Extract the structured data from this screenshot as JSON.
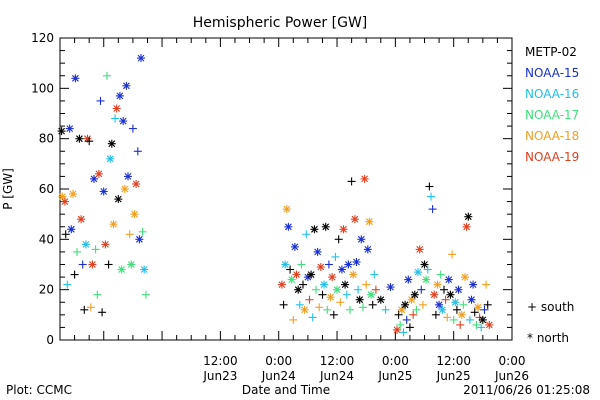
{
  "chart_data": {
    "type": "scatter",
    "title": "Hemispheric Power [GW]",
    "ylabel": "P [GW]",
    "xlabel": "Date and Time",
    "ylim": [
      0,
      120
    ],
    "y_ticks": [
      0,
      20,
      40,
      60,
      80,
      100,
      120
    ],
    "xlim": [
      "2011-06-22T03:00",
      "2011-06-26T00:00"
    ],
    "x_ticks": [
      {
        "at": "2011-06-23T12:00",
        "time": "12:00",
        "date": "Jun23"
      },
      {
        "at": "2011-06-24T00:00",
        "time": "0:00",
        "date": "Jun24"
      },
      {
        "at": "2011-06-24T12:00",
        "time": "12:00",
        "date": "Jun24"
      },
      {
        "at": "2011-06-25T00:00",
        "time": "0:00",
        "date": "Jun25"
      },
      {
        "at": "2011-06-25T12:00",
        "time": "12:00",
        "date": "Jun25"
      },
      {
        "at": "2011-06-26T00:00",
        "time": "0:00",
        "date": "Jun26"
      }
    ],
    "legend_placement": "right",
    "series": [
      {
        "name": "METP-02",
        "color": "#000000"
      },
      {
        "name": "NOAA-15",
        "color": "#1a2fd0"
      },
      {
        "name": "NOAA-16",
        "color": "#22c0e8"
      },
      {
        "name": "NOAA-17",
        "color": "#3ee07a"
      },
      {
        "name": "NOAA-18",
        "color": "#f0a020"
      },
      {
        "name": "NOAA-19",
        "color": "#e04020"
      }
    ],
    "marker_key": [
      {
        "symbol": "plus",
        "label": "+ south"
      },
      {
        "symbol": "star",
        "label": "* north"
      }
    ],
    "points": [
      [
        "2011-06-22T03:20",
        83,
        "METP-02",
        "star"
      ],
      [
        "2011-06-22T03:30",
        57,
        "NOAA-18",
        "star"
      ],
      [
        "2011-06-22T04:00",
        55,
        "NOAA-19",
        "star"
      ],
      [
        "2011-06-22T04:10",
        42,
        "METP-02",
        "plus"
      ],
      [
        "2011-06-22T04:30",
        22,
        "NOAA-16",
        "plus"
      ],
      [
        "2011-06-22T05:00",
        84,
        "NOAA-15",
        "star"
      ],
      [
        "2011-06-22T05:20",
        44,
        "NOAA-15",
        "star"
      ],
      [
        "2011-06-22T05:40",
        58,
        "NOAA-18",
        "star"
      ],
      [
        "2011-06-22T06:00",
        26,
        "METP-02",
        "plus"
      ],
      [
        "2011-06-22T06:10",
        104,
        "NOAA-15",
        "star"
      ],
      [
        "2011-06-22T06:30",
        35,
        "NOAA-17",
        "plus"
      ],
      [
        "2011-06-22T07:00",
        80,
        "METP-02",
        "star"
      ],
      [
        "2011-06-22T07:20",
        48,
        "NOAA-19",
        "star"
      ],
      [
        "2011-06-22T07:40",
        30,
        "NOAA-15",
        "plus"
      ],
      [
        "2011-06-22T08:00",
        12,
        "METP-02",
        "plus"
      ],
      [
        "2011-06-22T08:20",
        38,
        "NOAA-16",
        "star"
      ],
      [
        "2011-06-22T08:40",
        80,
        "NOAA-19",
        "star"
      ],
      [
        "2011-06-22T09:00",
        79,
        "METP-02",
        "plus"
      ],
      [
        "2011-06-22T09:20",
        13,
        "NOAA-18",
        "plus"
      ],
      [
        "2011-06-22T09:40",
        30,
        "NOAA-19",
        "star"
      ],
      [
        "2011-06-22T10:00",
        64,
        "NOAA-15",
        "star"
      ],
      [
        "2011-06-22T10:20",
        36,
        "NOAA-17",
        "plus"
      ],
      [
        "2011-06-22T10:40",
        18,
        "NOAA-17",
        "plus"
      ],
      [
        "2011-06-22T11:00",
        66,
        "NOAA-19",
        "star"
      ],
      [
        "2011-06-22T11:20",
        95,
        "NOAA-15",
        "plus"
      ],
      [
        "2011-06-22T11:40",
        11,
        "METP-02",
        "plus"
      ],
      [
        "2011-06-22T12:00",
        59,
        "NOAA-15",
        "star"
      ],
      [
        "2011-06-22T12:20",
        38,
        "NOAA-19",
        "star"
      ],
      [
        "2011-06-22T12:40",
        105,
        "NOAA-17",
        "plus"
      ],
      [
        "2011-06-22T13:00",
        30,
        "METP-02",
        "plus"
      ],
      [
        "2011-06-22T13:20",
        72,
        "NOAA-16",
        "star"
      ],
      [
        "2011-06-22T13:40",
        78,
        "METP-02",
        "star"
      ],
      [
        "2011-06-22T14:00",
        46,
        "NOAA-18",
        "star"
      ],
      [
        "2011-06-22T14:20",
        88,
        "NOAA-16",
        "plus"
      ],
      [
        "2011-06-22T14:40",
        92,
        "NOAA-19",
        "star"
      ],
      [
        "2011-06-22T15:00",
        56,
        "METP-02",
        "star"
      ],
      [
        "2011-06-22T15:20",
        97,
        "NOAA-15",
        "star"
      ],
      [
        "2011-06-22T15:40",
        28,
        "NOAA-17",
        "star"
      ],
      [
        "2011-06-22T16:00",
        87,
        "NOAA-15",
        "star"
      ],
      [
        "2011-06-22T16:20",
        60,
        "NOAA-18",
        "star"
      ],
      [
        "2011-06-22T16:40",
        101,
        "NOAA-15",
        "star"
      ],
      [
        "2011-06-22T17:00",
        65,
        "NOAA-15",
        "star"
      ],
      [
        "2011-06-22T17:20",
        42,
        "NOAA-18",
        "plus"
      ],
      [
        "2011-06-22T17:40",
        30,
        "NOAA-17",
        "star"
      ],
      [
        "2011-06-22T18:00",
        84,
        "NOAA-15",
        "plus"
      ],
      [
        "2011-06-22T18:20",
        50,
        "NOAA-18",
        "star"
      ],
      [
        "2011-06-22T18:40",
        62,
        "NOAA-19",
        "star"
      ],
      [
        "2011-06-22T19:00",
        75,
        "NOAA-15",
        "plus"
      ],
      [
        "2011-06-22T19:20",
        40,
        "NOAA-15",
        "star"
      ],
      [
        "2011-06-22T19:40",
        112,
        "NOAA-15",
        "star"
      ],
      [
        "2011-06-22T20:00",
        43,
        "NOAA-17",
        "plus"
      ],
      [
        "2011-06-22T20:20",
        28,
        "NOAA-16",
        "star"
      ],
      [
        "2011-06-22T20:40",
        18,
        "NOAA-17",
        "plus"
      ],
      [
        "2011-06-24T00:40",
        22,
        "NOAA-19",
        "star"
      ],
      [
        "2011-06-24T01:00",
        14,
        "METP-02",
        "plus"
      ],
      [
        "2011-06-24T01:20",
        30,
        "NOAA-16",
        "star"
      ],
      [
        "2011-06-24T01:40",
        52,
        "NOAA-18",
        "star"
      ],
      [
        "2011-06-24T02:00",
        45,
        "NOAA-15",
        "star"
      ],
      [
        "2011-06-24T02:20",
        28,
        "METP-02",
        "plus"
      ],
      [
        "2011-06-24T02:40",
        24,
        "NOAA-17",
        "star"
      ],
      [
        "2011-06-24T03:00",
        8,
        "NOAA-18",
        "plus"
      ],
      [
        "2011-06-24T03:20",
        37,
        "NOAA-15",
        "star"
      ],
      [
        "2011-06-24T03:40",
        26,
        "NOAA-19",
        "star"
      ],
      [
        "2011-06-24T04:00",
        20,
        "METP-02",
        "star"
      ],
      [
        "2011-06-24T04:20",
        14,
        "NOAA-16",
        "plus"
      ],
      [
        "2011-06-24T04:40",
        30,
        "NOAA-17",
        "plus"
      ],
      [
        "2011-06-24T05:00",
        22,
        "METP-02",
        "plus"
      ],
      [
        "2011-06-24T05:20",
        12,
        "NOAA-18",
        "star"
      ],
      [
        "2011-06-24T05:40",
        42,
        "NOAA-16",
        "plus"
      ],
      [
        "2011-06-24T06:00",
        25,
        "NOAA-15",
        "star"
      ],
      [
        "2011-06-24T06:20",
        16,
        "NOAA-19",
        "plus"
      ],
      [
        "2011-06-24T06:40",
        26,
        "METP-02",
        "star"
      ],
      [
        "2011-06-24T07:00",
        9,
        "NOAA-16",
        "plus"
      ],
      [
        "2011-06-24T07:20",
        44,
        "METP-02",
        "star"
      ],
      [
        "2011-06-24T07:40",
        20,
        "NOAA-17",
        "plus"
      ],
      [
        "2011-06-24T08:00",
        35,
        "NOAA-15",
        "star"
      ],
      [
        "2011-06-24T08:20",
        13,
        "NOAA-18",
        "plus"
      ],
      [
        "2011-06-24T08:40",
        29,
        "NOAA-19",
        "star"
      ],
      [
        "2011-06-24T09:00",
        18,
        "METP-02",
        "plus"
      ],
      [
        "2011-06-24T09:20",
        22,
        "NOAA-16",
        "star"
      ],
      [
        "2011-06-24T09:40",
        45,
        "METP-02",
        "star"
      ],
      [
        "2011-06-24T10:00",
        12,
        "NOAA-17",
        "plus"
      ],
      [
        "2011-06-24T10:20",
        30,
        "NOAA-15",
        "plus"
      ],
      [
        "2011-06-24T10:40",
        17,
        "NOAA-18",
        "star"
      ],
      [
        "2011-06-24T11:00",
        25,
        "NOAA-19",
        "star"
      ],
      [
        "2011-06-24T11:20",
        10,
        "METP-02",
        "plus"
      ],
      [
        "2011-06-24T11:40",
        33,
        "NOAA-16",
        "plus"
      ],
      [
        "2011-06-24T12:00",
        20,
        "NOAA-17",
        "star"
      ],
      [
        "2011-06-24T12:20",
        40,
        "METP-02",
        "plus"
      ],
      [
        "2011-06-24T12:40",
        15,
        "NOAA-18",
        "plus"
      ],
      [
        "2011-06-24T13:00",
        28,
        "NOAA-15",
        "star"
      ],
      [
        "2011-06-24T13:20",
        44,
        "NOAA-19",
        "star"
      ],
      [
        "2011-06-24T13:40",
        22,
        "METP-02",
        "star"
      ],
      [
        "2011-06-24T14:00",
        18,
        "NOAA-16",
        "plus"
      ],
      [
        "2011-06-24T14:20",
        30,
        "NOAA-15",
        "star"
      ],
      [
        "2011-06-24T14:40",
        12,
        "NOAA-17",
        "plus"
      ],
      [
        "2011-06-24T15:00",
        63,
        "METP-02",
        "plus"
      ],
      [
        "2011-06-24T15:20",
        26,
        "NOAA-18",
        "star"
      ],
      [
        "2011-06-24T15:40",
        48,
        "NOAA-19",
        "star"
      ],
      [
        "2011-06-24T16:00",
        31,
        "NOAA-15",
        "star"
      ],
      [
        "2011-06-24T16:20",
        20,
        "NOAA-16",
        "plus"
      ],
      [
        "2011-06-24T16:40",
        16,
        "METP-02",
        "star"
      ],
      [
        "2011-06-24T17:00",
        40,
        "NOAA-15",
        "star"
      ],
      [
        "2011-06-24T17:20",
        13,
        "NOAA-17",
        "plus"
      ],
      [
        "2011-06-24T17:40",
        64,
        "NOAA-19",
        "star"
      ],
      [
        "2011-06-24T18:00",
        22,
        "NOAA-18",
        "plus"
      ],
      [
        "2011-06-24T18:20",
        36,
        "NOAA-15",
        "star"
      ],
      [
        "2011-06-24T18:40",
        47,
        "NOAA-18",
        "star"
      ],
      [
        "2011-06-24T19:00",
        18,
        "NOAA-17",
        "star"
      ],
      [
        "2011-06-24T19:20",
        14,
        "METP-02",
        "plus"
      ],
      [
        "2011-06-24T19:40",
        26,
        "NOAA-16",
        "plus"
      ],
      [
        "2011-06-24T20:00",
        20,
        "NOAA-19",
        "plus"
      ],
      [
        "2011-06-24T21:00",
        16,
        "METP-02",
        "star"
      ],
      [
        "2011-06-24T22:00",
        12,
        "NOAA-16",
        "plus"
      ],
      [
        "2011-06-24T23:00",
        21,
        "NOAA-15",
        "star"
      ],
      [
        "2011-06-25T00:20",
        4,
        "NOAA-19",
        "star"
      ],
      [
        "2011-06-25T00:40",
        10,
        "METP-02",
        "plus"
      ],
      [
        "2011-06-25T01:00",
        6,
        "NOAA-17",
        "plus"
      ],
      [
        "2011-06-25T01:20",
        12,
        "NOAA-18",
        "star"
      ],
      [
        "2011-06-25T01:40",
        3,
        "NOAA-16",
        "plus"
      ],
      [
        "2011-06-25T02:00",
        14,
        "METP-02",
        "star"
      ],
      [
        "2011-06-25T02:20",
        8,
        "NOAA-15",
        "plus"
      ],
      [
        "2011-06-25T02:40",
        24,
        "NOAA-15",
        "star"
      ],
      [
        "2011-06-25T03:00",
        5,
        "METP-02",
        "plus"
      ],
      [
        "2011-06-25T03:20",
        16,
        "NOAA-18",
        "star"
      ],
      [
        "2011-06-25T03:40",
        10,
        "NOAA-19",
        "plus"
      ],
      [
        "2011-06-25T04:00",
        18,
        "METP-02",
        "star"
      ],
      [
        "2011-06-25T04:20",
        12,
        "NOAA-17",
        "plus"
      ],
      [
        "2011-06-25T04:40",
        27,
        "NOAA-16",
        "star"
      ],
      [
        "2011-06-25T05:00",
        36,
        "NOAA-19",
        "star"
      ],
      [
        "2011-06-25T05:20",
        20,
        "NOAA-15",
        "plus"
      ],
      [
        "2011-06-25T05:40",
        14,
        "NOAA-18",
        "plus"
      ],
      [
        "2011-06-25T06:00",
        30,
        "METP-02",
        "star"
      ],
      [
        "2011-06-25T06:20",
        24,
        "NOAA-17",
        "star"
      ],
      [
        "2011-06-25T06:40",
        28,
        "NOAA-16",
        "plus"
      ],
      [
        "2011-06-25T07:00",
        61,
        "METP-02",
        "plus"
      ],
      [
        "2011-06-25T07:20",
        57,
        "NOAA-16",
        "plus"
      ],
      [
        "2011-06-25T07:40",
        52,
        "NOAA-15",
        "plus"
      ],
      [
        "2011-06-25T08:00",
        18,
        "NOAA-19",
        "star"
      ],
      [
        "2011-06-25T08:20",
        10,
        "METP-02",
        "plus"
      ],
      [
        "2011-06-25T08:40",
        22,
        "NOAA-18",
        "star"
      ],
      [
        "2011-06-25T09:00",
        14,
        "NOAA-15",
        "star"
      ],
      [
        "2011-06-25T09:20",
        26,
        "NOAA-17",
        "plus"
      ],
      [
        "2011-06-25T09:40",
        12,
        "NOAA-16",
        "star"
      ],
      [
        "2011-06-25T10:00",
        20,
        "METP-02",
        "plus"
      ],
      [
        "2011-06-25T10:20",
        16,
        "NOAA-19",
        "plus"
      ],
      [
        "2011-06-25T10:40",
        9,
        "NOAA-18",
        "plus"
      ],
      [
        "2011-06-25T11:00",
        24,
        "NOAA-15",
        "star"
      ],
      [
        "2011-06-25T11:20",
        18,
        "METP-02",
        "star"
      ],
      [
        "2011-06-25T11:40",
        34,
        "NOAA-18",
        "plus"
      ],
      [
        "2011-06-25T12:00",
        8,
        "NOAA-17",
        "plus"
      ],
      [
        "2011-06-25T12:20",
        15,
        "NOAA-16",
        "star"
      ],
      [
        "2011-06-25T12:40",
        12,
        "METP-02",
        "plus"
      ],
      [
        "2011-06-25T13:00",
        20,
        "NOAA-15",
        "star"
      ],
      [
        "2011-06-25T13:20",
        6,
        "NOAA-19",
        "plus"
      ],
      [
        "2011-06-25T13:40",
        10,
        "NOAA-18",
        "star"
      ],
      [
        "2011-06-25T14:00",
        14,
        "NOAA-17",
        "plus"
      ],
      [
        "2011-06-25T14:20",
        25,
        "NOAA-18",
        "star"
      ],
      [
        "2011-06-25T14:40",
        45,
        "NOAA-19",
        "star"
      ],
      [
        "2011-06-25T15:00",
        49,
        "METP-02",
        "star"
      ],
      [
        "2011-06-25T15:20",
        8,
        "NOAA-16",
        "plus"
      ],
      [
        "2011-06-25T15:40",
        16,
        "NOAA-15",
        "star"
      ],
      [
        "2011-06-25T16:00",
        22,
        "NOAA-15",
        "star"
      ],
      [
        "2011-06-25T16:20",
        11,
        "METP-02",
        "plus"
      ],
      [
        "2011-06-25T16:40",
        6,
        "NOAA-17",
        "plus"
      ],
      [
        "2011-06-25T17:00",
        13,
        "NOAA-18",
        "star"
      ],
      [
        "2011-06-25T17:20",
        9,
        "NOAA-19",
        "plus"
      ],
      [
        "2011-06-25T17:40",
        5,
        "NOAA-16",
        "plus"
      ],
      [
        "2011-06-25T18:00",
        8,
        "METP-02",
        "star"
      ],
      [
        "2011-06-25T18:20",
        12,
        "NOAA-15",
        "plus"
      ],
      [
        "2011-06-25T18:40",
        22,
        "NOAA-18",
        "plus"
      ],
      [
        "2011-06-25T19:00",
        14,
        "METP-02",
        "plus"
      ],
      [
        "2011-06-25T19:20",
        6,
        "NOAA-19",
        "star"
      ]
    ]
  },
  "footer": {
    "left": "Plot: CCMC",
    "right": "2011/06/26 01:25:08"
  }
}
